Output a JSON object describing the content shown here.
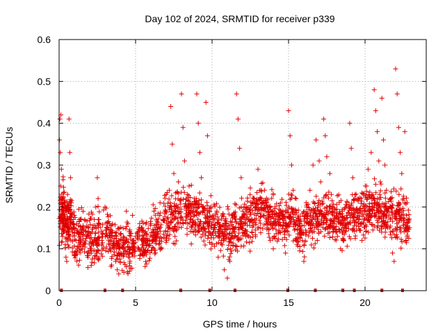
{
  "chart_data": {
    "type": "scatter",
    "title": "Day 102 of 2024, SRMTID for receiver p339",
    "xlabel": "GPS time / hours",
    "ylabel": "SRMTID / TECUs",
    "xlim": [
      0,
      24
    ],
    "ylim": [
      0,
      0.6
    ],
    "xticks": [
      0,
      5,
      10,
      15,
      20
    ],
    "xtick_labels": [
      "0",
      "5",
      "10",
      "15",
      "20"
    ],
    "yticks": [
      0,
      0.1,
      0.2,
      0.3,
      0.4,
      0.5,
      0.6
    ],
    "ytick_labels": [
      "0",
      "0.1",
      "0.2",
      "0.3",
      "0.4",
      "0.5",
      "0.6"
    ],
    "grid": true,
    "marker": "+",
    "color": "#e00000",
    "series": [
      {
        "name": "SRMTID",
        "points": [
          [
            0.02,
            0.36
          ],
          [
            0.05,
            0.41
          ],
          [
            0.08,
            0.33
          ],
          [
            0.1,
            0.25
          ],
          [
            0.12,
            0.42
          ],
          [
            0.15,
            0.29
          ],
          [
            0.18,
            0.22
          ],
          [
            0.2,
            0.19
          ],
          [
            0.25,
            0.16
          ],
          [
            0.3,
            0.14
          ],
          [
            0.35,
            0.2
          ],
          [
            0.4,
            0.11
          ],
          [
            0.45,
            0.08
          ],
          [
            0.5,
            0.07
          ],
          [
            0.55,
            0.23
          ],
          [
            0.6,
            0.19
          ],
          [
            0.65,
            0.41
          ],
          [
            0.7,
            0.33
          ],
          [
            0.75,
            0.27
          ],
          [
            0.8,
            0.21
          ],
          [
            0.9,
            0.15
          ],
          [
            1.0,
            0.18
          ],
          [
            1.1,
            0.12
          ],
          [
            1.2,
            0.1
          ],
          [
            1.4,
            0.14
          ],
          [
            1.6,
            0.11
          ],
          [
            1.8,
            0.13
          ],
          [
            2.0,
            0.09
          ],
          [
            2.1,
            0.06
          ],
          [
            2.2,
            0.15
          ],
          [
            2.3,
            0.12
          ],
          [
            2.4,
            0.2
          ],
          [
            2.5,
            0.27
          ],
          [
            2.55,
            0.22
          ],
          [
            2.6,
            0.17
          ],
          [
            2.8,
            0.12
          ],
          [
            3.0,
            0.2
          ],
          [
            3.1,
            0.15
          ],
          [
            3.3,
            0.1
          ],
          [
            3.5,
            0.13
          ],
          [
            3.7,
            0.07
          ],
          [
            3.8,
            0.05
          ],
          [
            3.9,
            0.04
          ],
          [
            4.0,
            0.09
          ],
          [
            4.2,
            0.11
          ],
          [
            4.4,
            0.19
          ],
          [
            4.5,
            0.16
          ],
          [
            4.6,
            0.08
          ],
          [
            4.8,
            0.18
          ],
          [
            4.9,
            0.12
          ],
          [
            5.0,
            0.13
          ],
          [
            5.2,
            0.1
          ],
          [
            5.4,
            0.15
          ],
          [
            5.6,
            0.09
          ],
          [
            5.8,
            0.12
          ],
          [
            6.0,
            0.16
          ],
          [
            6.2,
            0.19
          ],
          [
            6.4,
            0.14
          ],
          [
            6.6,
            0.21
          ],
          [
            6.8,
            0.17
          ],
          [
            7.0,
            0.23
          ],
          [
            7.2,
            0.24
          ],
          [
            7.3,
            0.44
          ],
          [
            7.4,
            0.35
          ],
          [
            7.5,
            0.28
          ],
          [
            7.6,
            0.2
          ],
          [
            7.8,
            0.26
          ],
          [
            8.0,
            0.47
          ],
          [
            8.1,
            0.39
          ],
          [
            8.2,
            0.31
          ],
          [
            8.3,
            0.22
          ],
          [
            8.5,
            0.25
          ],
          [
            8.6,
            0.17
          ],
          [
            8.8,
            0.14
          ],
          [
            9.0,
            0.47
          ],
          [
            9.1,
            0.4
          ],
          [
            9.2,
            0.33
          ],
          [
            9.3,
            0.27
          ],
          [
            9.4,
            0.2
          ],
          [
            9.6,
            0.45
          ],
          [
            9.7,
            0.37
          ],
          [
            9.8,
            0.15
          ],
          [
            10.0,
            0.11
          ],
          [
            10.2,
            0.14
          ],
          [
            10.4,
            0.08
          ],
          [
            10.6,
            0.12
          ],
          [
            10.8,
            0.05
          ],
          [
            11.0,
            0.03
          ],
          [
            11.2,
            0.1
          ],
          [
            11.4,
            0.14
          ],
          [
            11.6,
            0.47
          ],
          [
            11.7,
            0.41
          ],
          [
            11.8,
            0.34
          ],
          [
            11.9,
            0.27
          ],
          [
            12.0,
            0.19
          ],
          [
            12.2,
            0.13
          ],
          [
            12.4,
            0.17
          ],
          [
            12.6,
            0.14
          ],
          [
            12.8,
            0.21
          ],
          [
            13.0,
            0.29
          ],
          [
            13.2,
            0.24
          ],
          [
            13.4,
            0.18
          ],
          [
            13.6,
            0.15
          ],
          [
            13.8,
            0.12
          ],
          [
            14.0,
            0.1
          ],
          [
            14.2,
            0.16
          ],
          [
            14.4,
            0.14
          ],
          [
            14.6,
            0.18
          ],
          [
            14.8,
            0.09
          ],
          [
            15.0,
            0.43
          ],
          [
            15.1,
            0.37
          ],
          [
            15.2,
            0.3
          ],
          [
            15.3,
            0.24
          ],
          [
            15.5,
            0.22
          ],
          [
            15.7,
            0.16
          ],
          [
            15.9,
            0.12
          ],
          [
            16.0,
            0.07
          ],
          [
            16.2,
            0.2
          ],
          [
            16.4,
            0.24
          ],
          [
            16.6,
            0.3
          ],
          [
            16.8,
            0.36
          ],
          [
            17.0,
            0.31
          ],
          [
            17.1,
            0.26
          ],
          [
            17.3,
            0.41
          ],
          [
            17.4,
            0.37
          ],
          [
            17.5,
            0.32
          ],
          [
            17.7,
            0.28
          ],
          [
            17.8,
            0.23
          ],
          [
            17.9,
            0.19
          ],
          [
            18.0,
            0.16
          ],
          [
            18.2,
            0.13
          ],
          [
            18.4,
            0.1
          ],
          [
            18.6,
            0.15
          ],
          [
            18.8,
            0.18
          ],
          [
            19.0,
            0.4
          ],
          [
            19.1,
            0.34
          ],
          [
            19.2,
            0.27
          ],
          [
            19.4,
            0.22
          ],
          [
            19.6,
            0.17
          ],
          [
            19.8,
            0.12
          ],
          [
            20.0,
            0.2
          ],
          [
            20.1,
            0.25
          ],
          [
            20.2,
            0.29
          ],
          [
            20.4,
            0.33
          ],
          [
            20.5,
            0.22
          ],
          [
            20.6,
            0.48
          ],
          [
            20.7,
            0.43
          ],
          [
            20.8,
            0.38
          ],
          [
            20.9,
            0.31
          ],
          [
            21.0,
            0.26
          ],
          [
            21.1,
            0.46
          ],
          [
            21.2,
            0.36
          ],
          [
            21.3,
            0.3
          ],
          [
            21.4,
            0.24
          ],
          [
            21.5,
            0.19
          ],
          [
            21.6,
            0.15
          ],
          [
            21.8,
            0.09
          ],
          [
            21.9,
            0.07
          ],
          [
            22.0,
            0.53
          ],
          [
            22.1,
            0.47
          ],
          [
            22.2,
            0.39
          ],
          [
            22.3,
            0.33
          ],
          [
            22.4,
            0.28
          ],
          [
            22.5,
            0.22
          ],
          [
            22.6,
            0.38
          ],
          [
            22.7,
            0.18
          ],
          [
            22.75,
            0.15
          ],
          [
            22.8,
            0.17
          ]
        ]
      }
    ],
    "band_centers": [
      0.1,
      0.2,
      0.4,
      0.6,
      0.8,
      1.2,
      1.5,
      1.9,
      2.3,
      2.7,
      3.2,
      3.6,
      4.0,
      4.4,
      4.8,
      5.3,
      5.7,
      6.1,
      6.5,
      7.0,
      7.4,
      7.8,
      8.3,
      8.7,
      9.1,
      9.5,
      9.9,
      10.3,
      10.7,
      11.1,
      11.5,
      11.9,
      12.3,
      12.7,
      13.1,
      13.5,
      13.9,
      14.3,
      14.7,
      15.1,
      15.5,
      15.9,
      16.3,
      16.7,
      17.1,
      17.5,
      17.9,
      18.3,
      18.7,
      19.1,
      19.5,
      19.9,
      20.3,
      20.7,
      21.1,
      21.5,
      21.9,
      22.3,
      22.7
    ],
    "band_levels": [
      0.2,
      0.18,
      0.17,
      0.16,
      0.15,
      0.13,
      0.13,
      0.12,
      0.12,
      0.13,
      0.13,
      0.11,
      0.1,
      0.1,
      0.11,
      0.11,
      0.12,
      0.13,
      0.14,
      0.17,
      0.18,
      0.19,
      0.19,
      0.18,
      0.18,
      0.17,
      0.16,
      0.15,
      0.14,
      0.13,
      0.15,
      0.16,
      0.17,
      0.18,
      0.19,
      0.19,
      0.18,
      0.17,
      0.17,
      0.18,
      0.16,
      0.15,
      0.16,
      0.17,
      0.18,
      0.18,
      0.17,
      0.17,
      0.16,
      0.17,
      0.18,
      0.19,
      0.2,
      0.2,
      0.19,
      0.18,
      0.18,
      0.17,
      0.16
    ],
    "bottom_markers": [
      0.15,
      3.0,
      4.15,
      7.95,
      9.85,
      11.5,
      14.95,
      16.75,
      18.55,
      19.3,
      21.1,
      22.45
    ]
  }
}
